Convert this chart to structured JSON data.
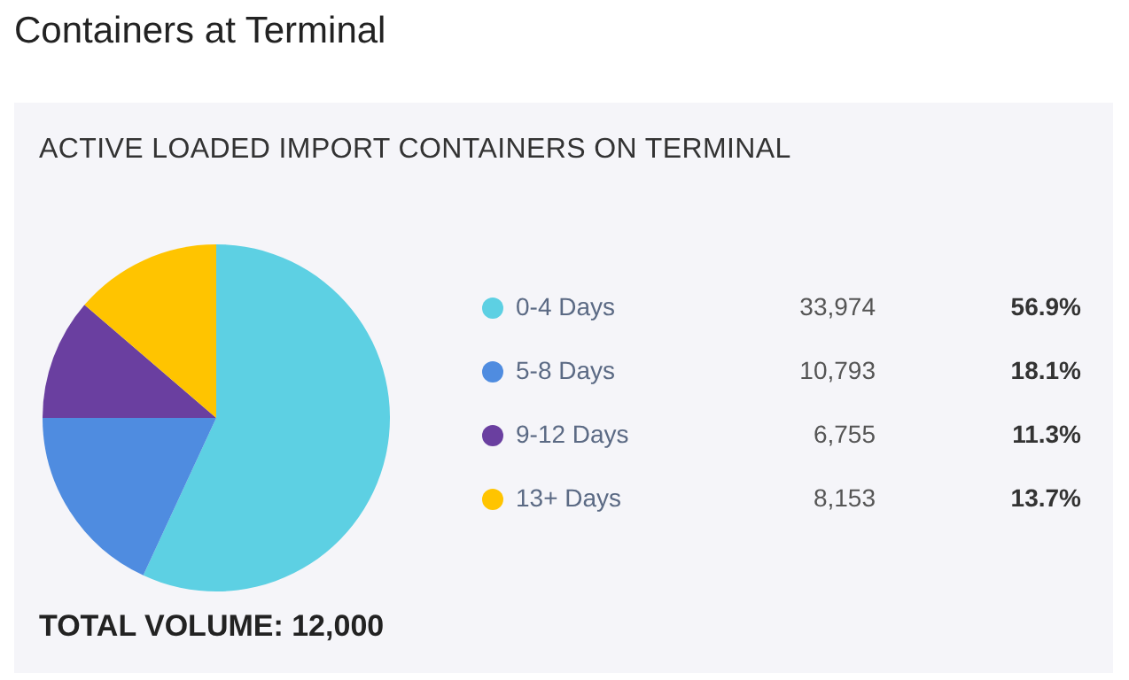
{
  "chart_data": {
    "type": "pie",
    "title": "Containers at Terminal",
    "subtitle": "ACTIVE LOADED IMPORT CONTAINERS ON TERMINAL",
    "categories": [
      "0-4 Days",
      "5-8 Days",
      "9-12 Days",
      "13+ Days"
    ],
    "values": [
      56.9,
      18.1,
      11.3,
      13.7
    ],
    "value_labels": [
      "56.9%",
      "18.1%",
      "11.3%",
      "13.7%"
    ],
    "colors": [
      "#5dd0e3",
      "#4f8ce0",
      "#6a3fa0",
      "#ffc400"
    ],
    "legend": "right",
    "annotations": [
      "33,974",
      "10,793",
      "6,755",
      "8,153",
      "TOTAL VOLUME: 12,000"
    ]
  }
}
